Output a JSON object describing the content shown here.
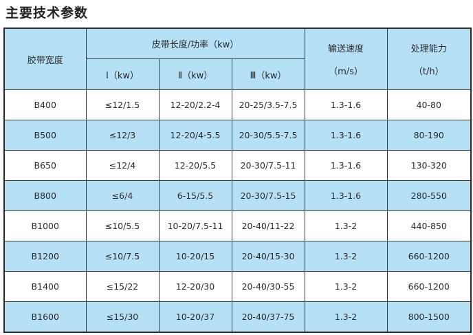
{
  "title": "主要技术参数",
  "header": {
    "width": "胶带宽度",
    "group": "皮带长度/功率（kw）",
    "sub": [
      "Ⅰ（kw）",
      "Ⅱ（kw）",
      "Ⅲ（kw）"
    ],
    "speed": "输送速度",
    "speed_unit": "（m/s）",
    "capacity": "处理能力",
    "capacity_unit": "（t/h）"
  },
  "colors": {
    "header_bg": "#b6e0f6",
    "border": "#2a2a2a"
  },
  "rows": [
    [
      "B400",
      "≤12/1.5",
      "12-20/2.2-4",
      "20-25/3.5-7.5",
      "1.3-1.6",
      "40-80"
    ],
    [
      "B500",
      "≤12/3",
      "12-20/4-5.5",
      "20-30/5.5-7.5",
      "1.3-1.6",
      "80-190"
    ],
    [
      "B650",
      "≤12/4",
      "12-20/5.5",
      "20-30/7.5-11",
      "1.3-1.6",
      "130-320"
    ],
    [
      "B800",
      "≤6/4",
      "6-15/5.5",
      "20-30/7.5-15",
      "1.3-1.6",
      "280-550"
    ],
    [
      "B1000",
      "≤10/5.5",
      "10-20/7.5-11",
      "20-40/11-22",
      "1.3-2",
      "440-850"
    ],
    [
      "B1200",
      "≤10/7.5",
      "10-20/15",
      "20-40/15-30",
      "1.3-2",
      "660-1200"
    ],
    [
      "B1400",
      "≤15/22",
      "12-20/30",
      "20-40/30-55",
      "1.3-2",
      "660-1200"
    ],
    [
      "B1600",
      "≤15/30",
      "10-20/37",
      "20-40/37-75",
      "1.3-2",
      "800-1500"
    ]
  ]
}
